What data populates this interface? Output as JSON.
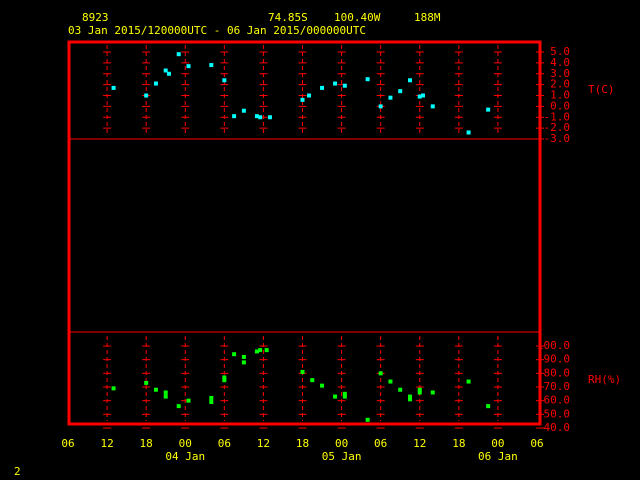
{
  "header": {
    "station": "8923",
    "latitude": "74.85S",
    "longitude": "100.40W",
    "elevation": "188M",
    "period": "03 Jan 2015/120000UTC - 06 Jan 2015/000000UTC",
    "page": "2"
  },
  "chart_data": {
    "type": "scatter",
    "xlim": [
      6,
      78
    ],
    "xticks": [
      {
        "value": 6,
        "label": "06"
      },
      {
        "value": 12,
        "label": "12"
      },
      {
        "value": 18,
        "label": "18"
      },
      {
        "value": 24,
        "label": "00"
      },
      {
        "value": 30,
        "label": "06"
      },
      {
        "value": 36,
        "label": "12"
      },
      {
        "value": 42,
        "label": "18"
      },
      {
        "value": 48,
        "label": "00"
      },
      {
        "value": 54,
        "label": "06"
      },
      {
        "value": 60,
        "label": "12"
      },
      {
        "value": 66,
        "label": "18"
      },
      {
        "value": 72,
        "label": "00"
      },
      {
        "value": 78,
        "label": "06"
      }
    ],
    "date_labels": [
      {
        "value": 24,
        "label": "04 Jan"
      },
      {
        "value": 48,
        "label": "05 Jan"
      },
      {
        "value": 72,
        "label": "06 Jan"
      }
    ],
    "grid": true,
    "panels": [
      {
        "y_label": "T(C)",
        "ylim": [
          -3,
          5
        ],
        "yticks": [
          {
            "value": 5,
            "label": "5.0"
          },
          {
            "value": 4,
            "label": "4.0"
          },
          {
            "value": 3,
            "label": "3.0"
          },
          {
            "value": 2,
            "label": "2.0"
          },
          {
            "value": 1,
            "label": "1.0"
          },
          {
            "value": 0,
            "label": "0.0"
          },
          {
            "value": -1,
            "label": "-1.0"
          },
          {
            "value": -2,
            "label": "-2.0"
          },
          {
            "value": -3,
            "label": "-3.0"
          }
        ],
        "series": [
          {
            "color": "#00ffff",
            "x": [
              13,
              18,
              19.5,
              21,
              21.5,
              23,
              24.5,
              28,
              30,
              31.5,
              33,
              35,
              35.5,
              37,
              42,
              43,
              45,
              47,
              48.5,
              52,
              54,
              55.5,
              57,
              58.5,
              60,
              60.5,
              62,
              67.5,
              70.5
            ],
            "values": [
              1.7,
              1.0,
              2.1,
              3.3,
              3.0,
              4.8,
              3.7,
              3.8,
              2.4,
              -0.9,
              -0.4,
              -0.9,
              -1.0,
              -1.0,
              0.6,
              1.0,
              1.7,
              2.1,
              1.9,
              2.5,
              0.0,
              0.8,
              1.4,
              2.4,
              0.9,
              1.0,
              0.0,
              -2.4,
              -0.3
            ]
          }
        ]
      },
      {
        "y_label": "RH(%)",
        "ylim": [
          40,
          100
        ],
        "yticks": [
          {
            "value": 100,
            "label": "100.0"
          },
          {
            "value": 90,
            "label": "90.0"
          },
          {
            "value": 80,
            "label": "80.0"
          },
          {
            "value": 70,
            "label": "70.0"
          },
          {
            "value": 60,
            "label": "60.0"
          },
          {
            "value": 50,
            "label": "50.0"
          },
          {
            "value": 40,
            "label": "40.0"
          }
        ],
        "series": [
          {
            "color": "#00ff00",
            "x": [
              13,
              18,
              19.5,
              21,
              21,
              23,
              24.5,
              28,
              28,
              30,
              30,
              31.5,
              33,
              33,
              35,
              35.5,
              36.5,
              42,
              43.5,
              45,
              47,
              48.5,
              48.5,
              52,
              54,
              55.5,
              57,
              58.5,
              58.5,
              60,
              60,
              62,
              67.5,
              70.5
            ],
            "values": [
              69,
              73,
              68,
              63,
              66,
              56,
              60,
              62,
              59,
              75,
              77,
              94,
              92,
              88,
              96,
              97,
              97,
              81,
              75,
              71,
              63,
              63,
              65,
              46,
              80,
              74,
              68,
              63,
              61,
              68,
              66,
              66,
              74,
              56
            ]
          }
        ]
      }
    ]
  }
}
